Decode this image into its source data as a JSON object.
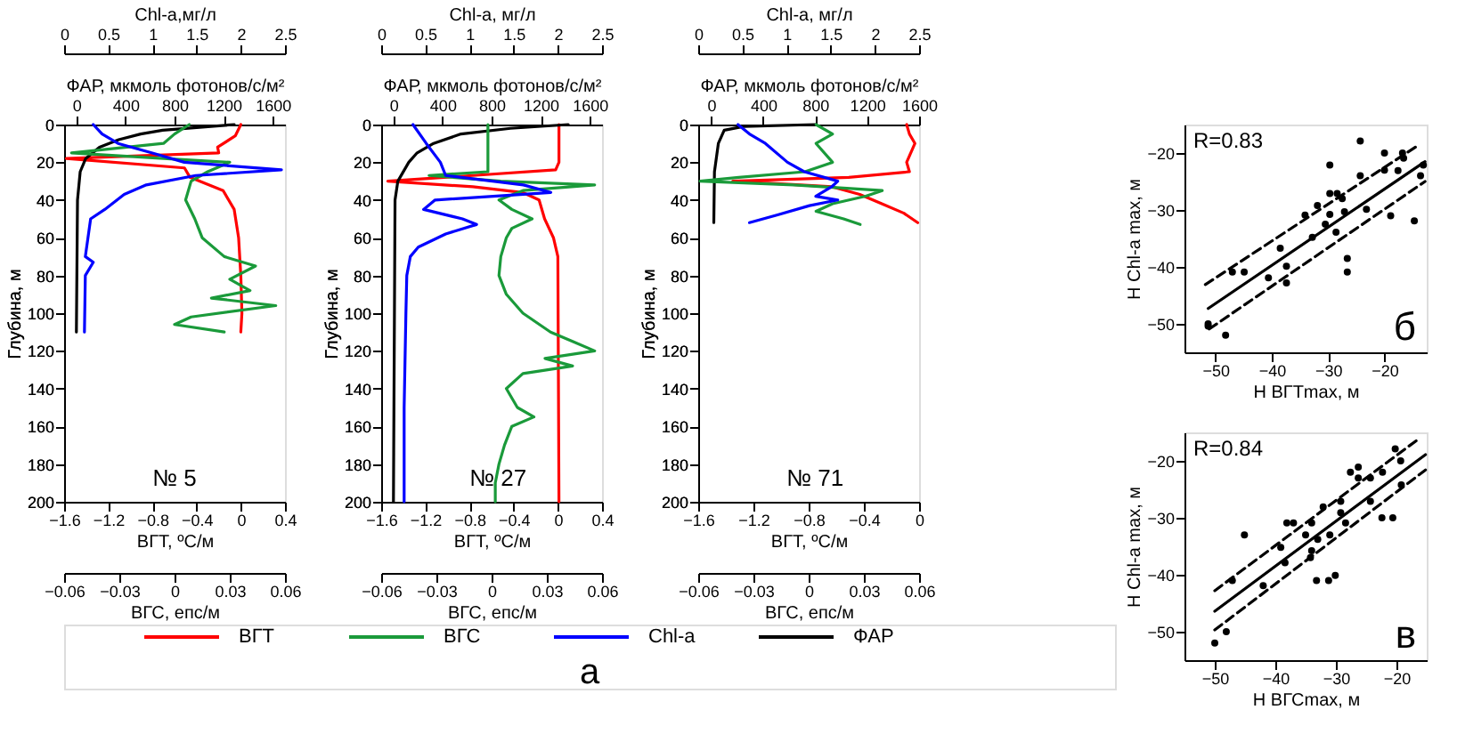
{
  "chart_data": [
    {
      "type": "line",
      "ylabel": "Глубина, м",
      "ylim": [
        200,
        0
      ],
      "yticks": [
        0,
        20,
        40,
        60,
        80,
        100,
        120,
        140,
        160,
        180,
        200
      ],
      "xlabel": "ВГТ, ºС/м",
      "xlim": [
        -1.6,
        0.4
      ],
      "xticks": [
        -1.6,
        -1.2,
        -0.8,
        -0.4,
        0,
        0.4
      ],
      "x2label": "ФАР, мкмоль фотонов/с/м²",
      "x2lim": [
        -100,
        1700
      ],
      "x2ticks": [
        0,
        400,
        800,
        1200,
        1600
      ],
      "legend": "bottom",
      "grid": false,
      "annotations": [
        "№ 5",
        "а"
      ],
      "series": [
        {
          "name": "ВГТ",
          "color": "#ff0000",
          "x": [
            0,
            -0.05,
            -0.21,
            -0.2,
            -1.58,
            -0.51,
            -0.46,
            -0.16,
            -0.06,
            -0.02,
            0,
            0.01,
            0
          ],
          "values": [
            0,
            6,
            12,
            15,
            18,
            23,
            28,
            35,
            45,
            60,
            80,
            100,
            110
          ]
        },
        {
          "name": "ФАР",
          "color": "#000000",
          "axis": "x2",
          "x": [
            1286,
            703,
            524,
            345,
            188,
            76,
            31,
            9,
            0
          ],
          "values": [
            0,
            3,
            5,
            8,
            12,
            18,
            25,
            40,
            110
          ]
        }
      ]
    },
    {
      "type": "line",
      "ylim": [
        200,
        0
      ],
      "tick_labels": "x",
      "xlabel": "ВГС, епс/м",
      "xlim": [
        -0.06,
        0.06
      ],
      "xticks": [
        -0.06,
        -0.03,
        0,
        0.03,
        0.06
      ],
      "x2label": "Chl-a,мг/л",
      "x2lim": [
        0,
        2.5
      ],
      "x2ticks": [
        0,
        0.5,
        1,
        1.5,
        2,
        2.5
      ],
      "legend": "bottom",
      "grid": false,
      "series": [
        {
          "name": "ВГС",
          "color": "#1a9a3a",
          "x": [
            0.008,
            0,
            -0.006,
            -0.056,
            -0.006,
            0.03,
            0.018,
            0.009,
            0.006,
            0.011,
            0.015,
            0.027,
            0.044,
            0.03,
            0.041,
            0.02,
            0.055,
            0.009,
            0.0,
            0.027
          ],
          "values": [
            0,
            5,
            10,
            15,
            18,
            20,
            25,
            30,
            40,
            50,
            60,
            70,
            75,
            82,
            88,
            92,
            96,
            102,
            106,
            110
          ]
        },
        {
          "name": "Chl-a",
          "color": "#0000ff",
          "axis": "x2",
          "x": [
            0.33,
            0.43,
            0.61,
            0.99,
            1.36,
            2.46,
            1.49,
            0.93,
            0.68,
            0.46,
            0.3,
            0.27,
            0.24,
            0.33,
            0.24,
            0.23
          ],
          "values": [
            0,
            5,
            10,
            15,
            20,
            24,
            27,
            32,
            37,
            45,
            50,
            60,
            70,
            73,
            80,
            110
          ]
        }
      ]
    },
    {
      "type": "line",
      "ylabel": "Глубина, м",
      "ylim": [
        200,
        0
      ],
      "yticks": [
        0,
        20,
        40,
        60,
        80,
        100,
        120,
        140,
        160,
        180,
        200
      ],
      "xlabel": "ВГТ, ºС/м",
      "xlim": [
        -1.6,
        0.4
      ],
      "xticks": [
        -1.6,
        -1.2,
        -0.8,
        -0.4,
        0,
        0.4
      ],
      "x2label": "ФАР, мкмоль фотонов/с/м²",
      "x2lim": [
        -100,
        1700
      ],
      "x2ticks": [
        0,
        400,
        800,
        1200,
        1600
      ],
      "grid": false,
      "annotations": [
        "№ 27"
      ],
      "series": [
        {
          "name": "ВГТ",
          "color": "#ff0000",
          "x": [
            0.01,
            0.01,
            -0.02,
            -0.77,
            -1.54,
            -0.77,
            -0.32,
            -0.17,
            -0.12,
            -0.04,
            0,
            0.01
          ],
          "values": [
            0,
            20,
            24,
            27,
            30,
            33,
            36,
            40,
            50,
            60,
            70,
            200
          ]
        },
        {
          "name": "ФАР",
          "color": "#000000",
          "axis": "x2",
          "x": [
            1425,
            954,
            551,
            327,
            193,
            125,
            36,
            13,
            0
          ],
          "values": [
            0,
            2,
            5,
            10,
            15,
            20,
            30,
            40,
            200
          ]
        }
      ]
    },
    {
      "type": "line",
      "ylim": [
        200,
        0
      ],
      "tick_labels": "x",
      "xlabel": "ВГС, епс/м",
      "xlim": [
        -0.06,
        0.06
      ],
      "xticks": [
        -0.06,
        -0.03,
        0,
        0.03,
        0.06
      ],
      "x2label": "Chl-a, мг/л",
      "x2lim": [
        0,
        2.5
      ],
      "x2ticks": [
        0,
        0.5,
        1,
        1.5,
        2,
        2.5
      ],
      "grid": false,
      "series": [
        {
          "name": "ВГС",
          "color": "#1a9a3a",
          "x": [
            -0.002,
            -0.002,
            -0.034,
            0.005,
            0.056,
            0.017,
            0.004,
            0.011,
            0.022,
            0.011,
            0.008,
            0.005,
            0.004,
            0.008,
            0.017,
            0.032,
            0.044,
            0.056,
            0.029,
            0.044,
            0.017,
            0.008,
            0.014,
            0.023,
            0.011,
            0.007,
            0.004,
            0.002,
            0.002
          ],
          "values": [
            0,
            25,
            27,
            30,
            32,
            35,
            40,
            45,
            50,
            55,
            60,
            70,
            80,
            90,
            100,
            110,
            115,
            120,
            124,
            128,
            132,
            140,
            150,
            155,
            160,
            170,
            180,
            190,
            200
          ]
        },
        {
          "name": "Chl-a",
          "color": "#0000ff",
          "axis": "x2",
          "x": [
            0.36,
            0.51,
            0.67,
            0.73,
            1.61,
            1.92,
            0.61,
            0.48,
            0.92,
            1.08,
            0.73,
            0.42,
            0.33,
            0.29,
            0.28,
            0.26,
            0.26
          ],
          "values": [
            0,
            10,
            20,
            27,
            32,
            36,
            40,
            45,
            50,
            53,
            58,
            65,
            70,
            80,
            100,
            150,
            200
          ]
        }
      ]
    },
    {
      "type": "line",
      "ylabel": "Глубина, м",
      "ylim": [
        200,
        0
      ],
      "yticks": [
        0,
        20,
        40,
        60,
        80,
        100,
        120,
        140,
        160,
        180,
        200
      ],
      "xlabel": "ВГТ, ºС/м",
      "xlim": [
        -1.6,
        0
      ],
      "xticks": [
        -1.6,
        -1.2,
        -0.8,
        -0.4,
        0
      ],
      "x2label": "ФАР, мкмоль фотонов/с/м²",
      "x2lim": [
        -100,
        1600
      ],
      "x2ticks": [
        0,
        400,
        800,
        1200,
        1600
      ],
      "grid": false,
      "annotations": [
        "№ 71"
      ],
      "series": [
        {
          "name": "ВГТ",
          "color": "#ff0000",
          "x": [
            -0.09,
            -0.07,
            -0.03,
            -0.09,
            -0.07,
            -0.51,
            -1.35,
            -0.63,
            -0.43,
            -0.27,
            -0.11,
            -0.01
          ],
          "values": [
            0,
            5,
            10,
            20,
            25,
            28,
            30,
            33,
            37,
            42,
            47,
            52
          ]
        },
        {
          "name": "ФАР",
          "color": "#000000",
          "axis": "x2",
          "x": [
            800,
            250,
            100,
            55,
            25,
            20
          ],
          "values": [
            0,
            1,
            3,
            10,
            25,
            52
          ]
        }
      ]
    },
    {
      "type": "line",
      "ylim": [
        200,
        0
      ],
      "tick_labels": "x",
      "xlabel": "ВГС, епс/м",
      "xlim": [
        -0.06,
        0.06
      ],
      "xticks": [
        -0.06,
        -0.03,
        0,
        0.03,
        0.06
      ],
      "x2label": "Chl-a, мг/л",
      "x2lim": [
        0,
        2.5
      ],
      "x2ticks": [
        0,
        0.5,
        1,
        1.5,
        2,
        2.5
      ],
      "grid": false,
      "series": [
        {
          "name": "ВГС",
          "color": "#1a9a3a",
          "x": [
            0.004,
            0.013,
            0.004,
            0.013,
            -0.002,
            -0.038,
            -0.059,
            -0.008,
            0.04,
            0.031,
            0.013,
            0.004,
            0.019,
            0.028
          ],
          "values": [
            0,
            5,
            10,
            20,
            25,
            28,
            30,
            32,
            35,
            38,
            42,
            46,
            50,
            53
          ]
        },
        {
          "name": "Chl-a",
          "color": "#0000ff",
          "axis": "x2",
          "x": [
            0.45,
            0.58,
            0.76,
            1.01,
            1.2,
            1.58,
            1.51,
            1.33,
            1.58,
            1.26,
            0.89,
            0.58
          ],
          "values": [
            0,
            5,
            10,
            20,
            25,
            30,
            33,
            38,
            40,
            43,
            48,
            52
          ]
        }
      ]
    },
    {
      "type": "scatter",
      "xlabel": "H ВГТmax, м",
      "ylabel": "H Chl-a max, м",
      "xlim": [
        -55.5,
        -12.5
      ],
      "xticks": [
        -50,
        -40,
        -30,
        -20
      ],
      "ylim": [
        -55,
        -15
      ],
      "yticks": [
        -50,
        -40,
        -30,
        -20
      ],
      "grid": false,
      "annotations": [
        "R=0.83",
        "б"
      ],
      "series": [
        {
          "type": "scatter",
          "color": "#000000",
          "marker": "circle",
          "x": [
            -51.3,
            -51.3,
            -48.2,
            -47,
            -44.9,
            -40.6,
            -37.4,
            -37.4,
            -38.5,
            -34.1,
            -31.9,
            -32.8,
            -29.7,
            -29.7,
            -28.4,
            -29.7,
            -28.6,
            -27.5,
            -26.6,
            -26.6,
            -24.3,
            -24.3,
            -23.2,
            -20,
            -20,
            -18.9,
            -16.8,
            -16.6,
            -17.6,
            -14.7,
            -13.1,
            -13.6,
            -27.1,
            -30.5
          ],
          "values": [
            -50,
            -50.4,
            -52,
            -40.9,
            -40.9,
            -41.9,
            -42.8,
            -39.9,
            -36.7,
            -30.9,
            -29.2,
            -34.8,
            -22.1,
            -27.1,
            -27.1,
            -30.8,
            -33.9,
            -28,
            -38.5,
            -40.9,
            -17.9,
            -24,
            -29.9,
            -20,
            -23,
            -31,
            -20,
            -20.9,
            -23.1,
            -31.9,
            -22.1,
            -24,
            -30.3,
            -32.5
          ]
        },
        {
          "type": "line",
          "color": "#000000",
          "x": [
            -51.3,
            -12.8
          ],
          "values": [
            -47.3,
            -21.5
          ]
        },
        {
          "type": "line",
          "color": "#000000",
          "line_style": "dashed",
          "x": [
            -51.8,
            -14.1
          ],
          "values": [
            -43.1,
            -18.7
          ]
        },
        {
          "type": "line",
          "color": "#000000",
          "line_style": "dashed",
          "x": [
            -51.1,
            -12.8
          ],
          "values": [
            -50.9,
            -25
          ]
        }
      ]
    },
    {
      "type": "scatter",
      "xlabel": "H ВГСmax, м",
      "ylabel": "H Chl-a max, м",
      "xlim": [
        -55,
        -15
      ],
      "xticks": [
        -50,
        -40,
        -30,
        -20
      ],
      "ylim": [
        -55,
        -15
      ],
      "yticks": [
        -50,
        -40,
        -30,
        -20
      ],
      "grid": false,
      "annotations": [
        "R=0.84",
        "в"
      ],
      "series": [
        {
          "type": "scatter",
          "color": "#000000",
          "marker": "circle",
          "x": [
            -50,
            -48.1,
            -47.1,
            -45.1,
            -42,
            -39.1,
            -38.4,
            -38.1,
            -37,
            -35,
            -34,
            -34,
            -34.2,
            -33.2,
            -33,
            -32.1,
            -31.2,
            -31,
            -30.1,
            -29.2,
            -28.4,
            -27.6,
            -26.3,
            -26.3,
            -24.3,
            -24.3,
            -22.3,
            -22.4,
            -20.6,
            -20.2,
            -19.3,
            -19.2,
            -29.2
          ],
          "values": [
            -52,
            -50,
            -41,
            -33,
            -41.9,
            -35.2,
            -37.9,
            -30.9,
            -30.9,
            -33,
            -30.9,
            -35.8,
            -37,
            -41,
            -33.8,
            -28.1,
            -41,
            -33,
            -40.1,
            -27.1,
            -30.9,
            -22,
            -21.1,
            -23,
            -23,
            -27.1,
            -22,
            -30,
            -30,
            -17.9,
            -20,
            -24.2,
            -29.1
          ]
        },
        {
          "type": "line",
          "color": "#000000",
          "x": [
            -50,
            -15.2
          ],
          "values": [
            -46.4,
            -18.9
          ]
        },
        {
          "type": "line",
          "color": "#000000",
          "line_style": "dashed",
          "x": [
            -50,
            -16.4
          ],
          "values": [
            -42.8,
            -16.2
          ]
        },
        {
          "type": "line",
          "color": "#000000",
          "line_style": "dashed",
          "x": [
            -50,
            -15.2
          ],
          "values": [
            -49.7,
            -21.6
          ]
        }
      ]
    }
  ]
}
